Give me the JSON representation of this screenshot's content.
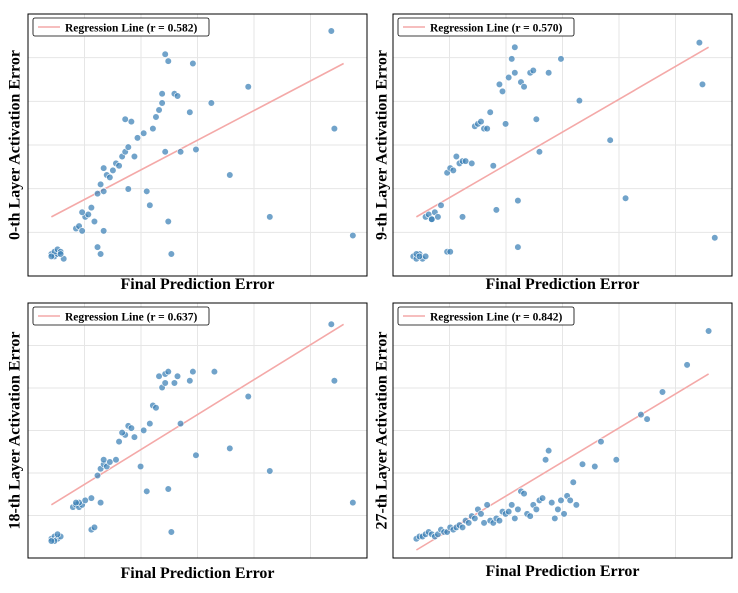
{
  "figure": {
    "background": "#ffffff",
    "point_color": "#3a80b6",
    "point_edge": "#ffffff",
    "line_color": "#f4a9a8",
    "grid_color": "#e6e6e6"
  },
  "chart_data": [
    {
      "type": "scatter",
      "title": "",
      "xlabel": "Final Prediction Error",
      "ylabel": "0-th Layer  Activation Error",
      "legend": [
        "Regression Line (r = 0.582)"
      ],
      "legend_position": "top-left",
      "grid": true,
      "xlim": [
        0,
        1.05
      ],
      "ylim": [
        0,
        1.05
      ],
      "regression": {
        "x0": 0.05,
        "y0": 0.22,
        "x1": 1.0,
        "y1": 0.88
      },
      "points": [
        [
          0.05,
          0.06
        ],
        [
          0.06,
          0.05
        ],
        [
          0.07,
          0.06
        ],
        [
          0.06,
          0.07
        ],
        [
          0.07,
          0.08
        ],
        [
          0.08,
          0.07
        ],
        [
          0.09,
          0.04
        ],
        [
          0.08,
          0.06
        ],
        [
          0.05,
          0.05
        ],
        [
          0.13,
          0.17
        ],
        [
          0.14,
          0.18
        ],
        [
          0.15,
          0.16
        ],
        [
          0.16,
          0.22
        ],
        [
          0.15,
          0.24
        ],
        [
          0.17,
          0.23
        ],
        [
          0.19,
          0.2
        ],
        [
          0.18,
          0.26
        ],
        [
          0.2,
          0.09
        ],
        [
          0.21,
          0.06
        ],
        [
          0.22,
          0.16
        ],
        [
          0.2,
          0.32
        ],
        [
          0.22,
          0.33
        ],
        [
          0.21,
          0.36
        ],
        [
          0.23,
          0.4
        ],
        [
          0.22,
          0.43
        ],
        [
          0.24,
          0.39
        ],
        [
          0.25,
          0.42
        ],
        [
          0.26,
          0.45
        ],
        [
          0.27,
          0.44
        ],
        [
          0.28,
          0.48
        ],
        [
          0.29,
          0.5
        ],
        [
          0.3,
          0.52
        ],
        [
          0.3,
          0.34
        ],
        [
          0.29,
          0.64
        ],
        [
          0.31,
          0.63
        ],
        [
          0.32,
          0.48
        ],
        [
          0.33,
          0.56
        ],
        [
          0.35,
          0.58
        ],
        [
          0.36,
          0.33
        ],
        [
          0.37,
          0.27
        ],
        [
          0.38,
          0.6
        ],
        [
          0.39,
          0.65
        ],
        [
          0.4,
          0.68
        ],
        [
          0.41,
          0.71
        ],
        [
          0.41,
          0.75
        ],
        [
          0.42,
          0.5
        ],
        [
          0.42,
          0.92
        ],
        [
          0.43,
          0.89
        ],
        [
          0.43,
          0.2
        ],
        [
          0.44,
          0.06
        ],
        [
          0.45,
          0.75
        ],
        [
          0.46,
          0.74
        ],
        [
          0.47,
          0.5
        ],
        [
          0.5,
          0.67
        ],
        [
          0.51,
          0.88
        ],
        [
          0.52,
          0.51
        ],
        [
          0.57,
          0.71
        ],
        [
          0.63,
          0.4
        ],
        [
          0.69,
          0.78
        ],
        [
          0.76,
          0.22
        ],
        [
          0.96,
          1.02
        ],
        [
          0.97,
          0.6
        ],
        [
          1.03,
          0.14
        ]
      ]
    },
    {
      "type": "scatter",
      "title": "",
      "xlabel": "Final Prediction Error",
      "ylabel": "9-th Layer  Activation Error",
      "legend": [
        "Regression Line (r = 0.570)"
      ],
      "legend_position": "top-left",
      "grid": true,
      "xlim": [
        0,
        1.05
      ],
      "ylim": [
        0,
        1.05
      ],
      "regression": {
        "x0": 0.05,
        "y0": 0.22,
        "x1": 1.0,
        "y1": 0.95
      },
      "points": [
        [
          0.04,
          0.05
        ],
        [
          0.05,
          0.04
        ],
        [
          0.06,
          0.06
        ],
        [
          0.07,
          0.04
        ],
        [
          0.05,
          0.06
        ],
        [
          0.08,
          0.05
        ],
        [
          0.06,
          0.05
        ],
        [
          0.08,
          0.22
        ],
        [
          0.09,
          0.23
        ],
        [
          0.1,
          0.21
        ],
        [
          0.11,
          0.24
        ],
        [
          0.1,
          0.21
        ],
        [
          0.12,
          0.22
        ],
        [
          0.13,
          0.27
        ],
        [
          0.15,
          0.07
        ],
        [
          0.16,
          0.07
        ],
        [
          0.15,
          0.41
        ],
        [
          0.16,
          0.43
        ],
        [
          0.17,
          0.42
        ],
        [
          0.18,
          0.48
        ],
        [
          0.19,
          0.45
        ],
        [
          0.2,
          0.46
        ],
        [
          0.21,
          0.46
        ],
        [
          0.2,
          0.22
        ],
        [
          0.23,
          0.45
        ],
        [
          0.24,
          0.61
        ],
        [
          0.25,
          0.62
        ],
        [
          0.26,
          0.63
        ],
        [
          0.27,
          0.6
        ],
        [
          0.28,
          0.6
        ],
        [
          0.29,
          0.67
        ],
        [
          0.3,
          0.44
        ],
        [
          0.31,
          0.25
        ],
        [
          0.32,
          0.79
        ],
        [
          0.33,
          0.76
        ],
        [
          0.34,
          0.62
        ],
        [
          0.35,
          0.82
        ],
        [
          0.36,
          0.9
        ],
        [
          0.37,
          0.84
        ],
        [
          0.37,
          0.95
        ],
        [
          0.38,
          0.29
        ],
        [
          0.38,
          0.09
        ],
        [
          0.39,
          0.8
        ],
        [
          0.4,
          0.78
        ],
        [
          0.42,
          0.84
        ],
        [
          0.43,
          0.85
        ],
        [
          0.44,
          0.64
        ],
        [
          0.45,
          0.5
        ],
        [
          0.48,
          0.84
        ],
        [
          0.52,
          0.9
        ],
        [
          0.58,
          0.72
        ],
        [
          0.68,
          0.55
        ],
        [
          0.73,
          0.3
        ],
        [
          0.97,
          0.97
        ],
        [
          0.98,
          0.79
        ],
        [
          1.02,
          0.13
        ]
      ]
    },
    {
      "type": "scatter",
      "title": "",
      "xlabel": "Final Prediction Error",
      "ylabel": "18-th Layer  Activation Error",
      "legend": [
        "Regression Line (r = 0.637)"
      ],
      "legend_position": "top-left",
      "grid": true,
      "xlim": [
        0,
        1.05
      ],
      "ylim": [
        0,
        1.05
      ],
      "regression": {
        "x0": 0.05,
        "y0": 0.2,
        "x1": 1.0,
        "y1": 1.0
      },
      "points": [
        [
          0.05,
          0.05
        ],
        [
          0.06,
          0.06
        ],
        [
          0.07,
          0.05
        ],
        [
          0.06,
          0.04
        ],
        [
          0.08,
          0.06
        ],
        [
          0.07,
          0.07
        ],
        [
          0.05,
          0.04
        ],
        [
          0.12,
          0.19
        ],
        [
          0.13,
          0.2
        ],
        [
          0.14,
          0.19
        ],
        [
          0.15,
          0.2
        ],
        [
          0.14,
          0.21
        ],
        [
          0.13,
          0.21
        ],
        [
          0.16,
          0.22
        ],
        [
          0.18,
          0.23
        ],
        [
          0.18,
          0.09
        ],
        [
          0.19,
          0.1
        ],
        [
          0.21,
          0.21
        ],
        [
          0.2,
          0.33
        ],
        [
          0.21,
          0.36
        ],
        [
          0.22,
          0.38
        ],
        [
          0.23,
          0.37
        ],
        [
          0.24,
          0.39
        ],
        [
          0.22,
          0.4
        ],
        [
          0.26,
          0.4
        ],
        [
          0.27,
          0.48
        ],
        [
          0.29,
          0.51
        ],
        [
          0.28,
          0.52
        ],
        [
          0.3,
          0.55
        ],
        [
          0.31,
          0.54
        ],
        [
          0.32,
          0.5
        ],
        [
          0.34,
          0.37
        ],
        [
          0.35,
          0.53
        ],
        [
          0.36,
          0.26
        ],
        [
          0.37,
          0.56
        ],
        [
          0.38,
          0.64
        ],
        [
          0.39,
          0.63
        ],
        [
          0.4,
          0.77
        ],
        [
          0.41,
          0.72
        ],
        [
          0.42,
          0.74
        ],
        [
          0.42,
          0.78
        ],
        [
          0.43,
          0.79
        ],
        [
          0.43,
          0.27
        ],
        [
          0.44,
          0.08
        ],
        [
          0.45,
          0.74
        ],
        [
          0.46,
          0.77
        ],
        [
          0.47,
          0.56
        ],
        [
          0.5,
          0.75
        ],
        [
          0.51,
          0.79
        ],
        [
          0.52,
          0.42
        ],
        [
          0.58,
          0.79
        ],
        [
          0.63,
          0.45
        ],
        [
          0.69,
          0.68
        ],
        [
          0.76,
          0.35
        ],
        [
          0.96,
          1.0
        ],
        [
          0.97,
          0.75
        ],
        [
          1.03,
          0.21
        ]
      ]
    },
    {
      "type": "scatter",
      "title": "",
      "xlabel": "Final Prediction Error",
      "ylabel": "27-th Layer  Activation Error",
      "legend": [
        "Regression Line (r = 0.842)"
      ],
      "legend_position": "top-left",
      "grid": true,
      "xlim": [
        0,
        1.05
      ],
      "ylim": [
        0,
        1.05
      ],
      "regression": {
        "x0": 0.05,
        "y0": 0.0,
        "x1": 1.0,
        "y1": 0.78
      },
      "points": [
        [
          0.05,
          0.05
        ],
        [
          0.06,
          0.06
        ],
        [
          0.07,
          0.06
        ],
        [
          0.08,
          0.07
        ],
        [
          0.09,
          0.08
        ],
        [
          0.1,
          0.07
        ],
        [
          0.11,
          0.06
        ],
        [
          0.12,
          0.07
        ],
        [
          0.13,
          0.09
        ],
        [
          0.14,
          0.08
        ],
        [
          0.15,
          0.08
        ],
        [
          0.16,
          0.1
        ],
        [
          0.17,
          0.09
        ],
        [
          0.18,
          0.1
        ],
        [
          0.19,
          0.11
        ],
        [
          0.2,
          0.1
        ],
        [
          0.21,
          0.13
        ],
        [
          0.22,
          0.12
        ],
        [
          0.23,
          0.15
        ],
        [
          0.24,
          0.14
        ],
        [
          0.25,
          0.18
        ],
        [
          0.26,
          0.16
        ],
        [
          0.27,
          0.12
        ],
        [
          0.28,
          0.2
        ],
        [
          0.29,
          0.13
        ],
        [
          0.3,
          0.12
        ],
        [
          0.31,
          0.14
        ],
        [
          0.32,
          0.13
        ],
        [
          0.33,
          0.17
        ],
        [
          0.34,
          0.16
        ],
        [
          0.35,
          0.17
        ],
        [
          0.36,
          0.2
        ],
        [
          0.37,
          0.14
        ],
        [
          0.38,
          0.18
        ],
        [
          0.39,
          0.26
        ],
        [
          0.4,
          0.25
        ],
        [
          0.41,
          0.16
        ],
        [
          0.42,
          0.15
        ],
        [
          0.43,
          0.2
        ],
        [
          0.44,
          0.18
        ],
        [
          0.45,
          0.22
        ],
        [
          0.46,
          0.23
        ],
        [
          0.47,
          0.4
        ],
        [
          0.48,
          0.44
        ],
        [
          0.49,
          0.21
        ],
        [
          0.5,
          0.14
        ],
        [
          0.51,
          0.18
        ],
        [
          0.52,
          0.22
        ],
        [
          0.53,
          0.16
        ],
        [
          0.54,
          0.24
        ],
        [
          0.55,
          0.22
        ],
        [
          0.56,
          0.3
        ],
        [
          0.57,
          0.2
        ],
        [
          0.59,
          0.38
        ],
        [
          0.63,
          0.37
        ],
        [
          0.65,
          0.48
        ],
        [
          0.7,
          0.4
        ],
        [
          0.78,
          0.6
        ],
        [
          0.8,
          0.58
        ],
        [
          0.85,
          0.7
        ],
        [
          0.93,
          0.82
        ],
        [
          1.0,
          0.97
        ]
      ]
    }
  ]
}
